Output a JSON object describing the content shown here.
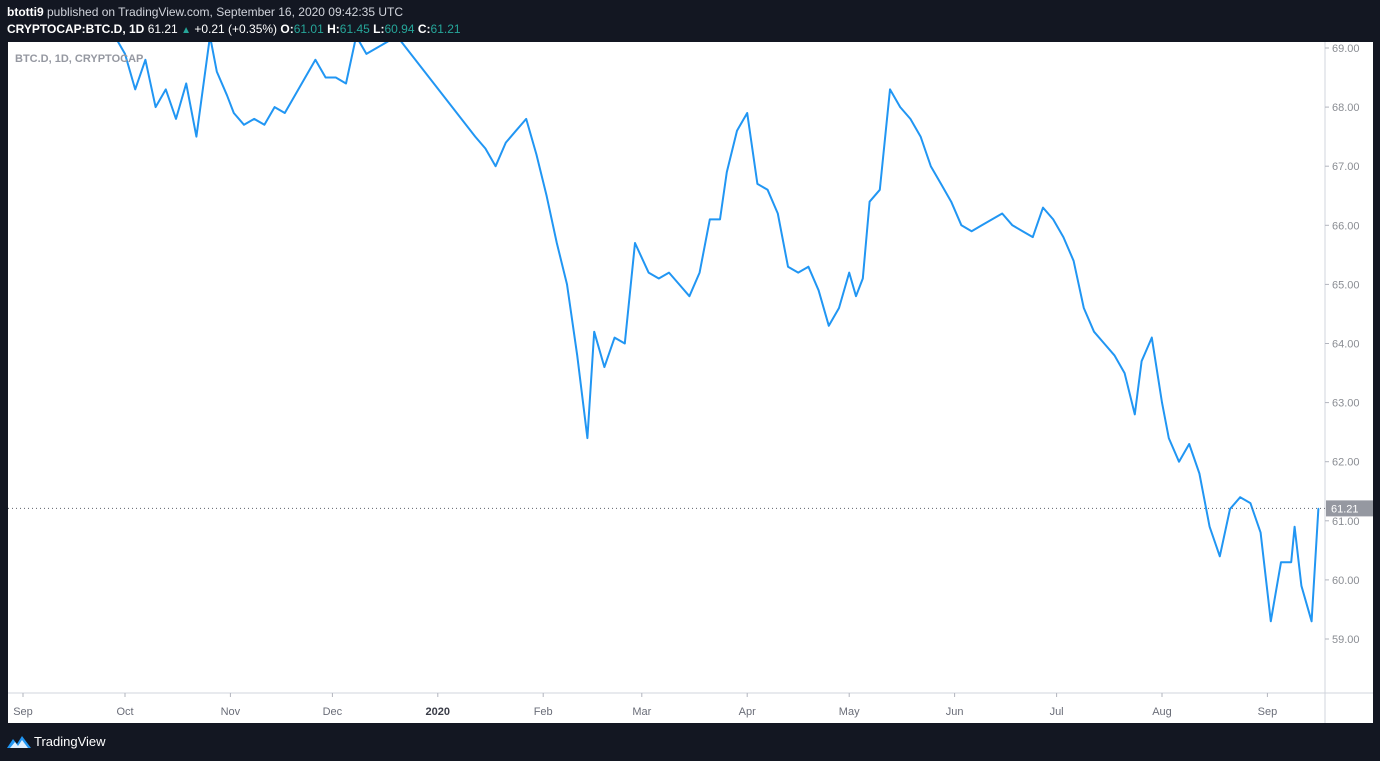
{
  "header": {
    "author": "btotti9",
    "published_text": "published on TradingView.com, September 16, 2020 09:42:35 UTC",
    "symbol": "CRYPTOCAP:BTC.D, 1D",
    "last_price": "61.21",
    "change": "+0.21 (+0.35%)",
    "o_label": "O:",
    "o_value": "61.01",
    "h_label": "H:",
    "h_value": "61.45",
    "l_label": "L:",
    "l_value": "60.94",
    "c_label": "C:",
    "c_value": "61.21"
  },
  "watermark": "BTC.D, 1D, CRYPTOCAP",
  "footer": {
    "brand": "TradingView"
  },
  "colors": {
    "line": "#2196f3",
    "background": "#131722",
    "plot_bg": "#ffffff",
    "up": "#26a69a"
  },
  "chart_data": {
    "type": "line",
    "ylim": [
      58.1,
      69.1
    ],
    "y_ticks": [
      "59.00",
      "60.00",
      "61.00",
      "62.00",
      "63.00",
      "64.00",
      "65.00",
      "66.00",
      "67.00",
      "68.00",
      "69.00"
    ],
    "x_ticks": [
      "Sep",
      "Oct",
      "Nov",
      "Dec",
      "2020",
      "Feb",
      "Mar",
      "Apr",
      "May",
      "Jun",
      "Jul",
      "Aug",
      "Sep"
    ],
    "x_ticks_bold": [
      "2020"
    ],
    "last_value_label": "61.21",
    "last_value": 61.21,
    "grid": false,
    "series": [
      {
        "x": [
          "2019-09-28",
          "2019-10-01",
          "2019-10-04",
          "2019-10-07",
          "2019-10-10",
          "2019-10-13",
          "2019-10-16",
          "2019-10-19",
          "2019-10-22",
          "2019-10-26",
          "2019-10-28",
          "2019-10-31",
          "2019-11-02",
          "2019-11-05",
          "2019-11-08",
          "2019-11-11",
          "2019-11-14",
          "2019-11-17",
          "2019-11-20",
          "2019-11-23",
          "2019-11-26",
          "2019-11-29",
          "2019-12-02",
          "2019-12-05",
          "2019-12-08",
          "2019-12-11",
          "2019-12-14",
          "2019-12-17",
          "2019-12-20",
          "2020-01-12",
          "2020-01-15",
          "2020-01-18",
          "2020-01-21",
          "2020-01-24",
          "2020-01-27",
          "2020-01-30",
          "2020-02-02",
          "2020-02-05",
          "2020-02-08",
          "2020-02-11",
          "2020-02-14",
          "2020-02-16",
          "2020-02-19",
          "2020-02-22",
          "2020-02-25",
          "2020-02-28",
          "2020-03-03",
          "2020-03-06",
          "2020-03-09",
          "2020-03-12",
          "2020-03-15",
          "2020-03-18",
          "2020-03-21",
          "2020-03-24",
          "2020-03-26",
          "2020-03-29",
          "2020-04-01",
          "2020-04-04",
          "2020-04-07",
          "2020-04-10",
          "2020-04-13",
          "2020-04-16",
          "2020-04-19",
          "2020-04-22",
          "2020-04-25",
          "2020-04-28",
          "2020-05-01",
          "2020-05-03",
          "2020-05-05",
          "2020-05-07",
          "2020-05-10",
          "2020-05-13",
          "2020-05-16",
          "2020-05-19",
          "2020-05-22",
          "2020-05-25",
          "2020-05-28",
          "2020-05-31",
          "2020-06-03",
          "2020-06-06",
          "2020-06-09",
          "2020-06-12",
          "2020-06-15",
          "2020-06-18",
          "2020-06-21",
          "2020-06-24",
          "2020-06-27",
          "2020-06-30",
          "2020-07-03",
          "2020-07-06",
          "2020-07-09",
          "2020-07-12",
          "2020-07-15",
          "2020-07-18",
          "2020-07-21",
          "2020-07-24",
          "2020-07-26",
          "2020-07-29",
          "2020-08-01",
          "2020-08-03",
          "2020-08-06",
          "2020-08-09",
          "2020-08-12",
          "2020-08-15",
          "2020-08-18",
          "2020-08-21",
          "2020-08-24",
          "2020-08-27",
          "2020-08-30",
          "2020-09-02",
          "2020-09-05",
          "2020-09-08",
          "2020-09-09",
          "2020-09-11",
          "2020-09-14",
          "2020-09-16"
        ],
        "y": [
          69.2,
          68.9,
          68.3,
          68.8,
          68.0,
          68.3,
          67.8,
          68.4,
          67.5,
          69.2,
          68.6,
          68.2,
          67.9,
          67.7,
          67.8,
          67.7,
          68.0,
          67.9,
          68.2,
          68.5,
          68.8,
          68.5,
          68.5,
          68.4,
          69.2,
          68.9,
          69.0,
          69.1,
          69.2,
          67.5,
          67.3,
          67.0,
          67.4,
          67.6,
          67.8,
          67.2,
          66.5,
          65.7,
          65.0,
          63.8,
          62.4,
          64.2,
          63.6,
          64.1,
          64.0,
          65.7,
          65.2,
          65.1,
          65.2,
          65.0,
          64.8,
          65.2,
          66.1,
          66.1,
          66.9,
          67.6,
          67.9,
          66.7,
          66.6,
          66.2,
          65.3,
          65.2,
          65.3,
          64.9,
          64.3,
          64.6,
          65.2,
          64.8,
          65.1,
          66.4,
          66.6,
          68.3,
          68.0,
          67.8,
          67.5,
          67.0,
          66.7,
          66.4,
          66.0,
          65.9,
          66.0,
          66.1,
          66.2,
          66.0,
          65.9,
          65.8,
          66.3,
          66.1,
          65.8,
          65.4,
          64.6,
          64.2,
          64.0,
          63.8,
          63.5,
          62.8,
          63.7,
          64.1,
          63.0,
          62.4,
          62.0,
          62.3,
          61.8,
          60.9,
          60.4,
          61.2,
          61.4,
          61.3,
          60.8,
          59.3,
          60.3,
          60.3,
          60.9,
          59.9,
          59.3,
          61.21
        ]
      }
    ]
  }
}
